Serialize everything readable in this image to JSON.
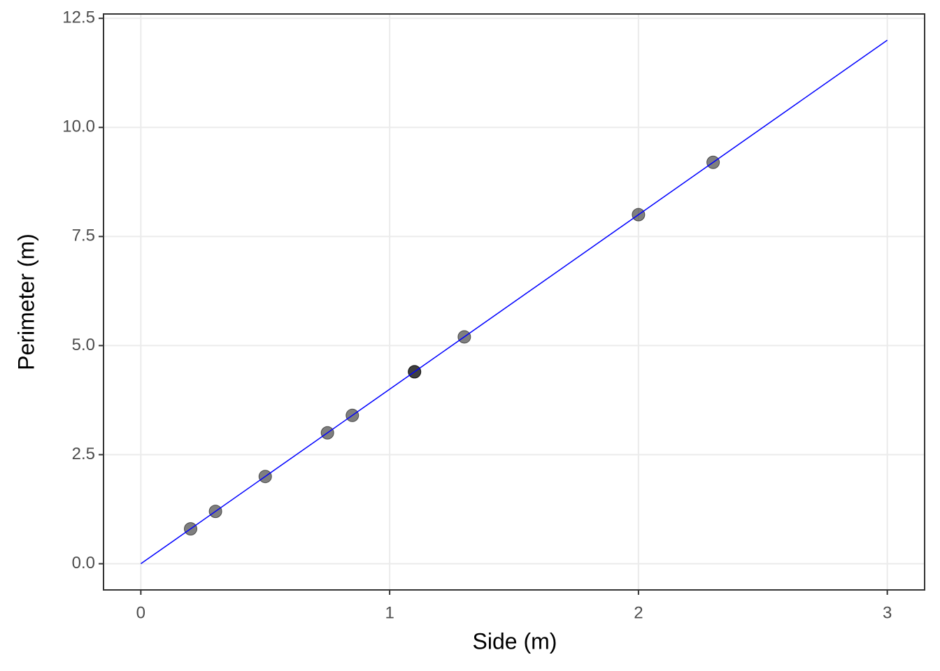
{
  "chart_data": {
    "type": "scatter",
    "x_label": "Side (m)",
    "y_label": "Perimeter (m)",
    "xlim": [
      -0.15,
      3.15
    ],
    "ylim": [
      -0.6,
      12.6
    ],
    "xticks": [
      0,
      1,
      2,
      3
    ],
    "yticks": [
      {
        "value": 0,
        "label": "0.0"
      },
      2.5,
      {
        "value": 5,
        "label": "5.0"
      },
      7.5,
      {
        "value": 10,
        "label": "10.0"
      },
      12.5
    ],
    "grid": true,
    "series": [
      {
        "type": "scatter",
        "color": "#000000",
        "x": [
          0.2,
          0.3,
          0.5,
          0.75,
          0.85,
          1.1,
          1.1,
          1.3,
          2.0,
          2.3
        ],
        "values": [
          0.8,
          1.2,
          2.0,
          3.0,
          3.4,
          4.4,
          4.4,
          5.2,
          8.0,
          9.2
        ]
      },
      {
        "type": "line",
        "color": "#0000ff",
        "x": [
          0,
          3
        ],
        "values": [
          0,
          12
        ]
      }
    ]
  }
}
